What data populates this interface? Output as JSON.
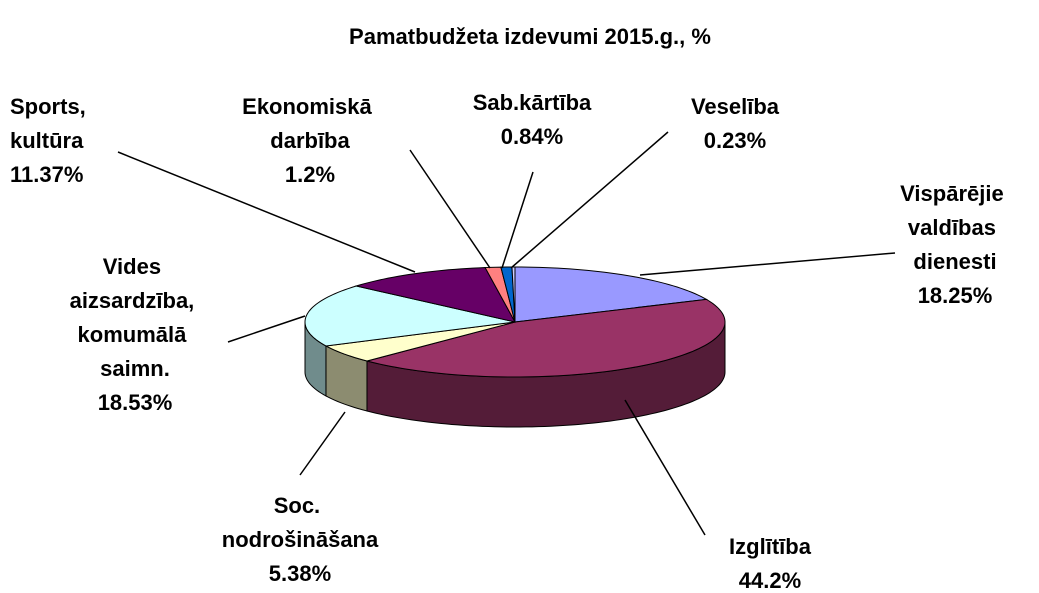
{
  "chart_data": {
    "type": "pie",
    "title": "Pamatbudžeta izdevumi 2015.g., %",
    "categories": [
      "Vispārējie valdības dienesti",
      "Izglītība",
      "Soc. nodrošināšana",
      "Vides aizsardzība, komumālā saimn.",
      "Sports, kultūra",
      "Ekonomiskā darbība",
      "Sab.kārtība",
      "Veselība"
    ],
    "values": [
      18.25,
      44.2,
      5.38,
      18.53,
      11.37,
      1.2,
      0.84,
      0.23
    ],
    "value_labels": [
      "18.25%",
      "44.2%",
      "5.38%",
      "18.53%",
      "11.37%",
      "1.2%",
      "0.84%",
      "0.23%"
    ],
    "colors": [
      "#9999ff",
      "#993366",
      "#ffffcc",
      "#ccffff",
      "#660066",
      "#ff8080",
      "#0066cc",
      "#ccccff"
    ]
  }
}
